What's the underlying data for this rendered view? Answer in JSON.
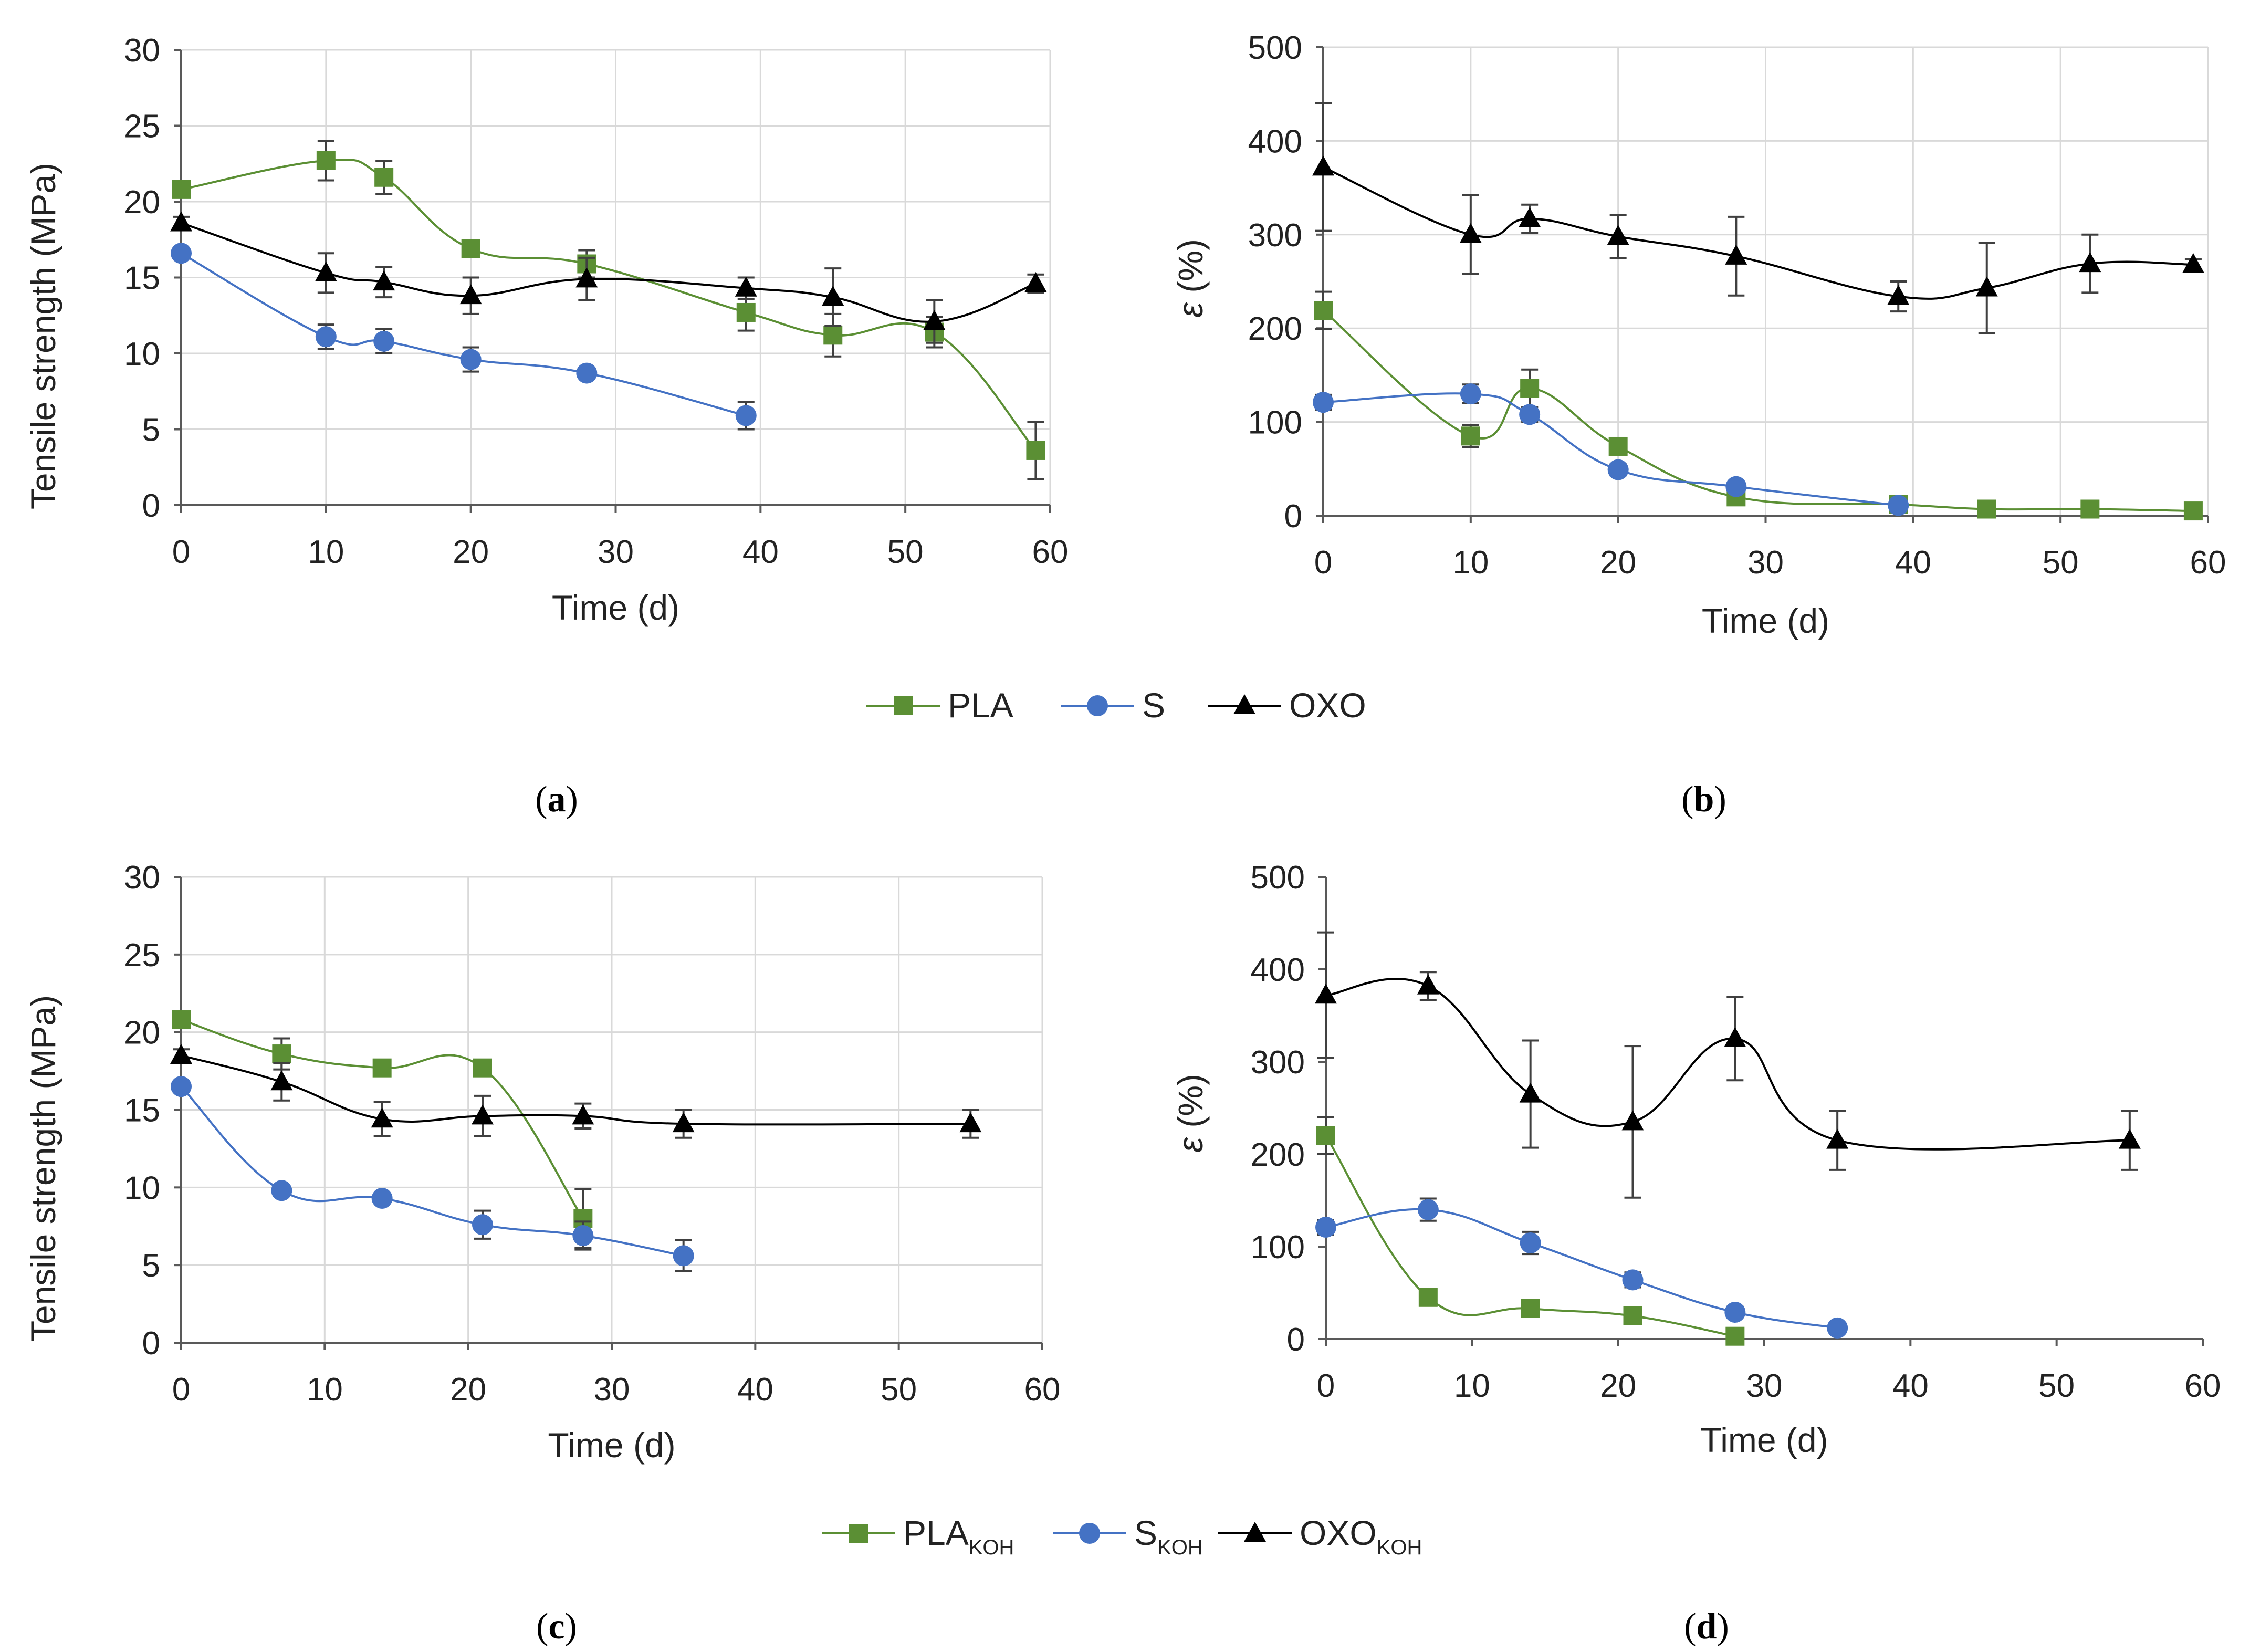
{
  "colors": {
    "PLA": "#5b8f34",
    "S": "#4472c4",
    "OXO": "#000000",
    "errorbar": "#404040"
  },
  "chart_data": [
    {
      "id": "a",
      "type": "line",
      "xlabel": "Time (d)",
      "ylabel": "Tensile strength  (MPa)",
      "ylabel_italic_part": "",
      "xlim": [
        0,
        60
      ],
      "ylim": [
        0,
        30
      ],
      "xticks": [
        0,
        10,
        20,
        30,
        40,
        50,
        60
      ],
      "yticks": [
        0,
        5,
        10,
        15,
        20,
        25,
        30
      ],
      "grid": true,
      "series": [
        {
          "name": "PLA",
          "marker": "square",
          "color_key": "PLA",
          "x": [
            0,
            10,
            14,
            20,
            28,
            39,
            45,
            52,
            59
          ],
          "y": [
            20.8,
            22.7,
            21.6,
            16.9,
            15.9,
            12.7,
            11.2,
            11.4,
            3.6
          ],
          "err": [
            0.4,
            1.3,
            1.1,
            0.3,
            0.9,
            1.2,
            1.4,
            1.0,
            1.9
          ]
        },
        {
          "name": "S",
          "marker": "circle",
          "color_key": "S",
          "x": [
            0,
            10,
            14,
            20,
            28,
            39
          ],
          "y": [
            16.6,
            11.1,
            10.8,
            9.6,
            8.7,
            5.9
          ],
          "err": [
            0.3,
            0.8,
            0.8,
            0.8,
            0.3,
            0.9
          ]
        },
        {
          "name": "OXO",
          "marker": "triangle",
          "color_key": "OXO",
          "x": [
            0,
            10,
            14,
            20,
            28,
            39,
            45,
            52,
            59
          ],
          "y": [
            18.6,
            15.3,
            14.7,
            13.8,
            14.9,
            14.3,
            13.7,
            12.1,
            14.6
          ],
          "err": [
            0.4,
            1.3,
            1.0,
            1.2,
            1.4,
            0.7,
            1.9,
            1.4,
            0.6
          ]
        }
      ]
    },
    {
      "id": "b",
      "type": "line",
      "xlabel": "Time (d)",
      "ylabel": " (%)",
      "ylabel_italic_part": "ε",
      "xlim": [
        0,
        60
      ],
      "ylim": [
        0,
        500
      ],
      "xticks": [
        0,
        10,
        20,
        30,
        40,
        50,
        60
      ],
      "yticks": [
        0,
        100,
        200,
        300,
        400,
        500
      ],
      "grid": true,
      "series": [
        {
          "name": "PLA",
          "marker": "square",
          "color_key": "PLA",
          "x": [
            0,
            10,
            14,
            20,
            28,
            39,
            45,
            52,
            59
          ],
          "y": [
            219,
            85,
            136,
            74,
            20,
            12,
            7,
            7,
            5
          ],
          "err": [
            20,
            12,
            20,
            8,
            4,
            3,
            2,
            2,
            2
          ]
        },
        {
          "name": "S",
          "marker": "circle",
          "color_key": "S",
          "x": [
            0,
            10,
            14,
            20,
            28,
            39
          ],
          "y": [
            121,
            130,
            108,
            49,
            31,
            11
          ],
          "err": [
            8,
            10,
            8,
            6,
            4,
            3
          ]
        },
        {
          "name": "OXO",
          "marker": "triangle",
          "color_key": "OXO",
          "x": [
            0,
            10,
            14,
            20,
            28,
            39,
            45,
            52,
            59
          ],
          "y": [
            372,
            300,
            317,
            298,
            277,
            234,
            243,
            269,
            268
          ],
          "err": [
            68,
            42,
            15,
            23,
            42,
            16,
            48,
            31,
            6
          ]
        }
      ]
    },
    {
      "id": "c",
      "type": "line",
      "xlabel": "Time (d)",
      "ylabel": "Tensile strength  (MPa)",
      "ylabel_italic_part": "",
      "xlim": [
        0,
        60
      ],
      "ylim": [
        0,
        30
      ],
      "xticks": [
        0,
        10,
        20,
        30,
        40,
        50,
        60
      ],
      "yticks": [
        0,
        5,
        10,
        15,
        20,
        25,
        30
      ],
      "grid": true,
      "series": [
        {
          "name": "PLA",
          "sub": "KOH",
          "marker": "square",
          "color_key": "PLA",
          "x": [
            0,
            7,
            14,
            21,
            28
          ],
          "y": [
            20.8,
            18.6,
            17.7,
            17.7,
            8.0
          ],
          "err": [
            0.3,
            1.0,
            0.3,
            0.3,
            1.9
          ]
        },
        {
          "name": "S",
          "sub": "KOH",
          "marker": "circle",
          "color_key": "S",
          "x": [
            0,
            7,
            14,
            21,
            28,
            35
          ],
          "y": [
            16.5,
            9.8,
            9.3,
            7.6,
            6.9,
            5.6
          ],
          "err": [
            0.3,
            0.3,
            0.3,
            0.9,
            0.9,
            1.0
          ]
        },
        {
          "name": "OXO",
          "sub": "KOH",
          "marker": "triangle",
          "color_key": "OXO",
          "x": [
            0,
            7,
            14,
            21,
            28,
            35,
            55
          ],
          "y": [
            18.5,
            16.8,
            14.4,
            14.6,
            14.6,
            14.1,
            14.1
          ],
          "err": [
            0.4,
            1.2,
            1.1,
            1.3,
            0.8,
            0.9,
            0.9
          ]
        }
      ]
    },
    {
      "id": "d",
      "type": "line",
      "xlabel": "Time (d)",
      "ylabel": " (%)",
      "ylabel_italic_part": "ε",
      "xlim": [
        0,
        60
      ],
      "ylim": [
        0,
        500
      ],
      "xticks": [
        0,
        10,
        20,
        30,
        40,
        50,
        60
      ],
      "yticks": [
        0,
        100,
        200,
        300,
        400,
        500
      ],
      "grid": false,
      "series": [
        {
          "name": "PLA",
          "sub": "KOH",
          "marker": "square",
          "color_key": "PLA",
          "x": [
            0,
            7,
            14,
            21,
            28
          ],
          "y": [
            220,
            45,
            33,
            25,
            3
          ],
          "err": [
            20,
            8,
            4,
            8,
            2
          ]
        },
        {
          "name": "S",
          "sub": "KOH",
          "marker": "circle",
          "color_key": "S",
          "x": [
            0,
            7,
            14,
            21,
            28,
            35
          ],
          "y": [
            121,
            140,
            104,
            64,
            29,
            12
          ],
          "err": [
            8,
            12,
            12,
            8,
            6,
            3
          ]
        },
        {
          "name": "OXO",
          "sub": "KOH",
          "marker": "triangle",
          "color_key": "OXO",
          "x": [
            0,
            7,
            14,
            21,
            28,
            35,
            55
          ],
          "y": [
            372,
            382,
            265,
            235,
            325,
            215,
            215
          ],
          "err": [
            68,
            15,
            58,
            82,
            45,
            32,
            32
          ]
        }
      ]
    }
  ],
  "legends": [
    {
      "items": [
        {
          "name": "PLA",
          "sub": ""
        },
        {
          "name": "S",
          "sub": ""
        },
        {
          "name": "OXO",
          "sub": ""
        }
      ]
    },
    {
      "items": [
        {
          "name": "PLA",
          "sub": "KOH"
        },
        {
          "name": "S",
          "sub": "KOH"
        },
        {
          "name": "OXO",
          "sub": "KOH"
        }
      ]
    }
  ],
  "panel_labels": [
    {
      "open": "(",
      "letter": "a",
      "close": ")"
    },
    {
      "open": "(",
      "letter": "b",
      "close": ")"
    },
    {
      "open": "(",
      "letter": "c",
      "close": ")"
    },
    {
      "open": "(",
      "letter": "d",
      "close": ")"
    }
  ]
}
